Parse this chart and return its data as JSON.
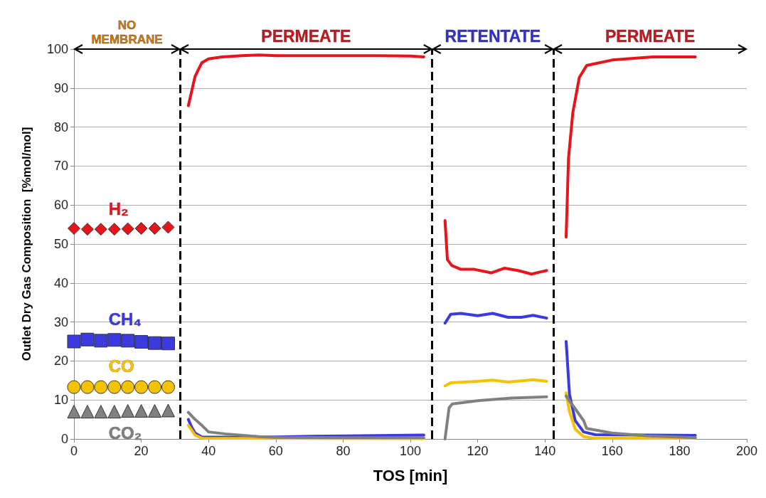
{
  "chart_data": {
    "type": "line",
    "xlabel": "TOS [min]",
    "ylabel": "Outlet Dry Gas Composition  [%mol/mol]",
    "xlim": [
      0,
      200
    ],
    "xticks": [
      0,
      20,
      40,
      60,
      80,
      100,
      120,
      140,
      160,
      180,
      200
    ],
    "ylim": [
      0,
      100
    ],
    "yticks": [
      0,
      10,
      20,
      30,
      40,
      50,
      60,
      70,
      80,
      90,
      100
    ],
    "grid": "y",
    "legend": false,
    "series": [
      {
        "name": "H₂",
        "type": "scatter",
        "marker": "diamond",
        "color": "#e8141b",
        "x": [
          0,
          4,
          8,
          12,
          16,
          20,
          24,
          28
        ],
        "values": [
          54.0,
          53.8,
          53.8,
          53.8,
          53.9,
          54.0,
          54.0,
          54.3
        ]
      },
      {
        "name": "CH₄",
        "type": "scatter",
        "marker": "square",
        "color": "#3a3adf",
        "x": [
          0,
          4,
          8,
          12,
          16,
          20,
          24,
          28
        ],
        "values": [
          25.0,
          25.5,
          25.2,
          25.4,
          25.2,
          24.9,
          24.6,
          24.5
        ]
      },
      {
        "name": "CO",
        "type": "scatter",
        "marker": "circle",
        "color": "#f5c200",
        "x": [
          0,
          4,
          8,
          12,
          16,
          20,
          24,
          28
        ],
        "values": [
          13.3,
          13.3,
          13.3,
          13.3,
          13.3,
          13.3,
          13.3,
          13.3
        ]
      },
      {
        "name": "CO₂",
        "type": "scatter",
        "marker": "triangle",
        "color": "#808080",
        "x": [
          0,
          4,
          8,
          12,
          16,
          20,
          24,
          28
        ],
        "values": [
          7.0,
          7.0,
          7.0,
          7.0,
          7.2,
          7.2,
          7.2,
          7.3
        ]
      },
      {
        "color": "#e8141b",
        "x": [
          34,
          36,
          38,
          40,
          44,
          50,
          55,
          60,
          70,
          80,
          90,
          100,
          104,
          107,
          110.3,
          111,
          112.3,
          115,
          119,
          124,
          128,
          132,
          136,
          140.5,
          143,
          146.3,
          147,
          148.3,
          150.2,
          152.4,
          160,
          172,
          184.7
        ],
        "values": [
          85.5,
          93,
          96.5,
          97.5,
          98,
          98.3,
          98.5,
          98.3,
          98.3,
          98.3,
          98.3,
          98.2,
          98,
          null,
          56,
          46,
          44.5,
          43.5,
          43.5,
          42.6,
          43.8,
          43.2,
          42.3,
          43.2,
          null,
          51.8,
          72,
          83.8,
          92.7,
          95.8,
          97.2,
          98,
          98
        ]
      },
      {
        "color": "#3a3adf",
        "x": [
          34,
          35,
          36,
          38,
          50,
          60,
          70,
          104,
          107,
          110.3,
          112,
          115,
          120,
          124.5,
          129,
          133,
          136.5,
          140.5,
          143,
          146.3,
          147.3,
          149,
          151.5,
          155,
          184.7
        ],
        "values": [
          5,
          3,
          1.5,
          0.5,
          0.4,
          0.5,
          0.7,
          1.0,
          null,
          29.7,
          32,
          32.2,
          31.6,
          32.2,
          31.2,
          31.2,
          31.7,
          31.0,
          null,
          25,
          11.4,
          4.7,
          1.8,
          1.1,
          0.9
        ]
      },
      {
        "color": "#f5c200",
        "x": [
          34,
          36,
          38,
          104,
          107,
          110.3,
          112,
          120,
          124.5,
          129,
          136.5,
          140.5,
          143,
          146.3,
          147.3,
          149,
          151.5,
          155,
          184.7
        ],
        "values": [
          3.5,
          1,
          0.2,
          0.1,
          null,
          13.6,
          14.4,
          14.8,
          15.1,
          14.6,
          15.2,
          14.8,
          null,
          11.8,
          7,
          2.5,
          0.6,
          0.2,
          0.2
        ]
      },
      {
        "color": "#808080",
        "x": [
          34,
          36,
          38,
          40,
          45,
          55,
          60,
          80,
          104,
          107,
          110.3,
          111.5,
          112.5,
          120,
          130,
          140.5,
          143,
          146.3,
          151.5,
          152.4,
          160,
          170,
          184.7
        ],
        "values": [
          6.8,
          5,
          3.5,
          1.8,
          1.3,
          0.6,
          0.4,
          0.3,
          0.3,
          null,
          0,
          8,
          9.0,
          9.8,
          10.5,
          10.8,
          null,
          11,
          4.7,
          2.7,
          1.5,
          0.8,
          0.3
        ]
      }
    ],
    "ref_lines": [
      {
        "axis": "x",
        "value": 31.5,
        "color": "#000000",
        "line_style": "dashed"
      },
      {
        "axis": "x",
        "value": 106.5,
        "color": "#000000",
        "line_style": "dashed"
      },
      {
        "axis": "x",
        "value": 142.5,
        "color": "#000000",
        "line_style": "dashed"
      }
    ],
    "annotations": [
      "NO MEMBRANE",
      "PERMEATE",
      "RETENTATE",
      "PERMEATE"
    ]
  }
}
